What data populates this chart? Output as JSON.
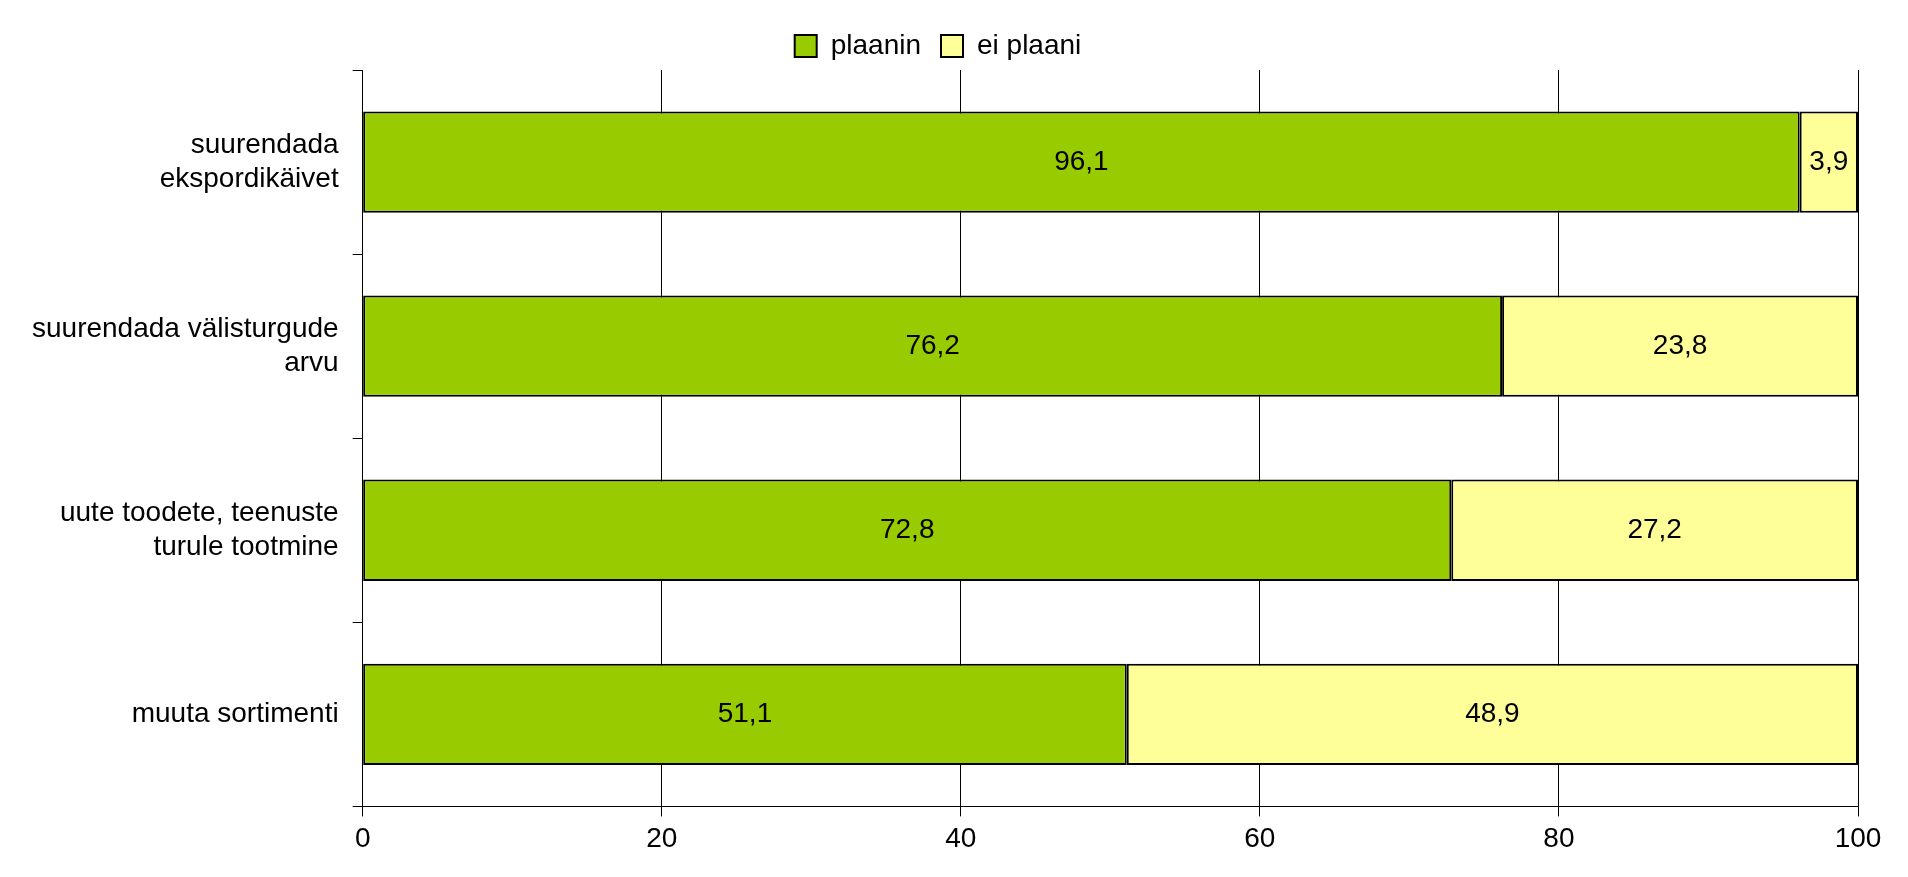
{
  "chart_data": {
    "type": "bar",
    "orientation": "horizontal",
    "stacked": true,
    "categories": [
      "suurendada ekspordikäivet",
      "suurendada välisturgude arvu",
      "uute toodete, teenuste turule tootmine",
      "muuta sortimenti"
    ],
    "series": [
      {
        "name": "plaanin",
        "color": "#99cc00",
        "values": [
          96.1,
          76.2,
          72.8,
          51.1
        ],
        "value_labels": [
          "96,1",
          "76,2",
          "72,8",
          "51,1"
        ]
      },
      {
        "name": "ei plaani",
        "color": "#ffff99",
        "values": [
          3.9,
          23.8,
          27.2,
          48.9
        ],
        "value_labels": [
          "3,9",
          "23,8",
          "27,2",
          "48,9"
        ]
      }
    ],
    "xlim": [
      0,
      100
    ],
    "xticks": [
      0,
      20,
      40,
      60,
      80,
      100
    ],
    "grid": "x",
    "legend": "top"
  }
}
